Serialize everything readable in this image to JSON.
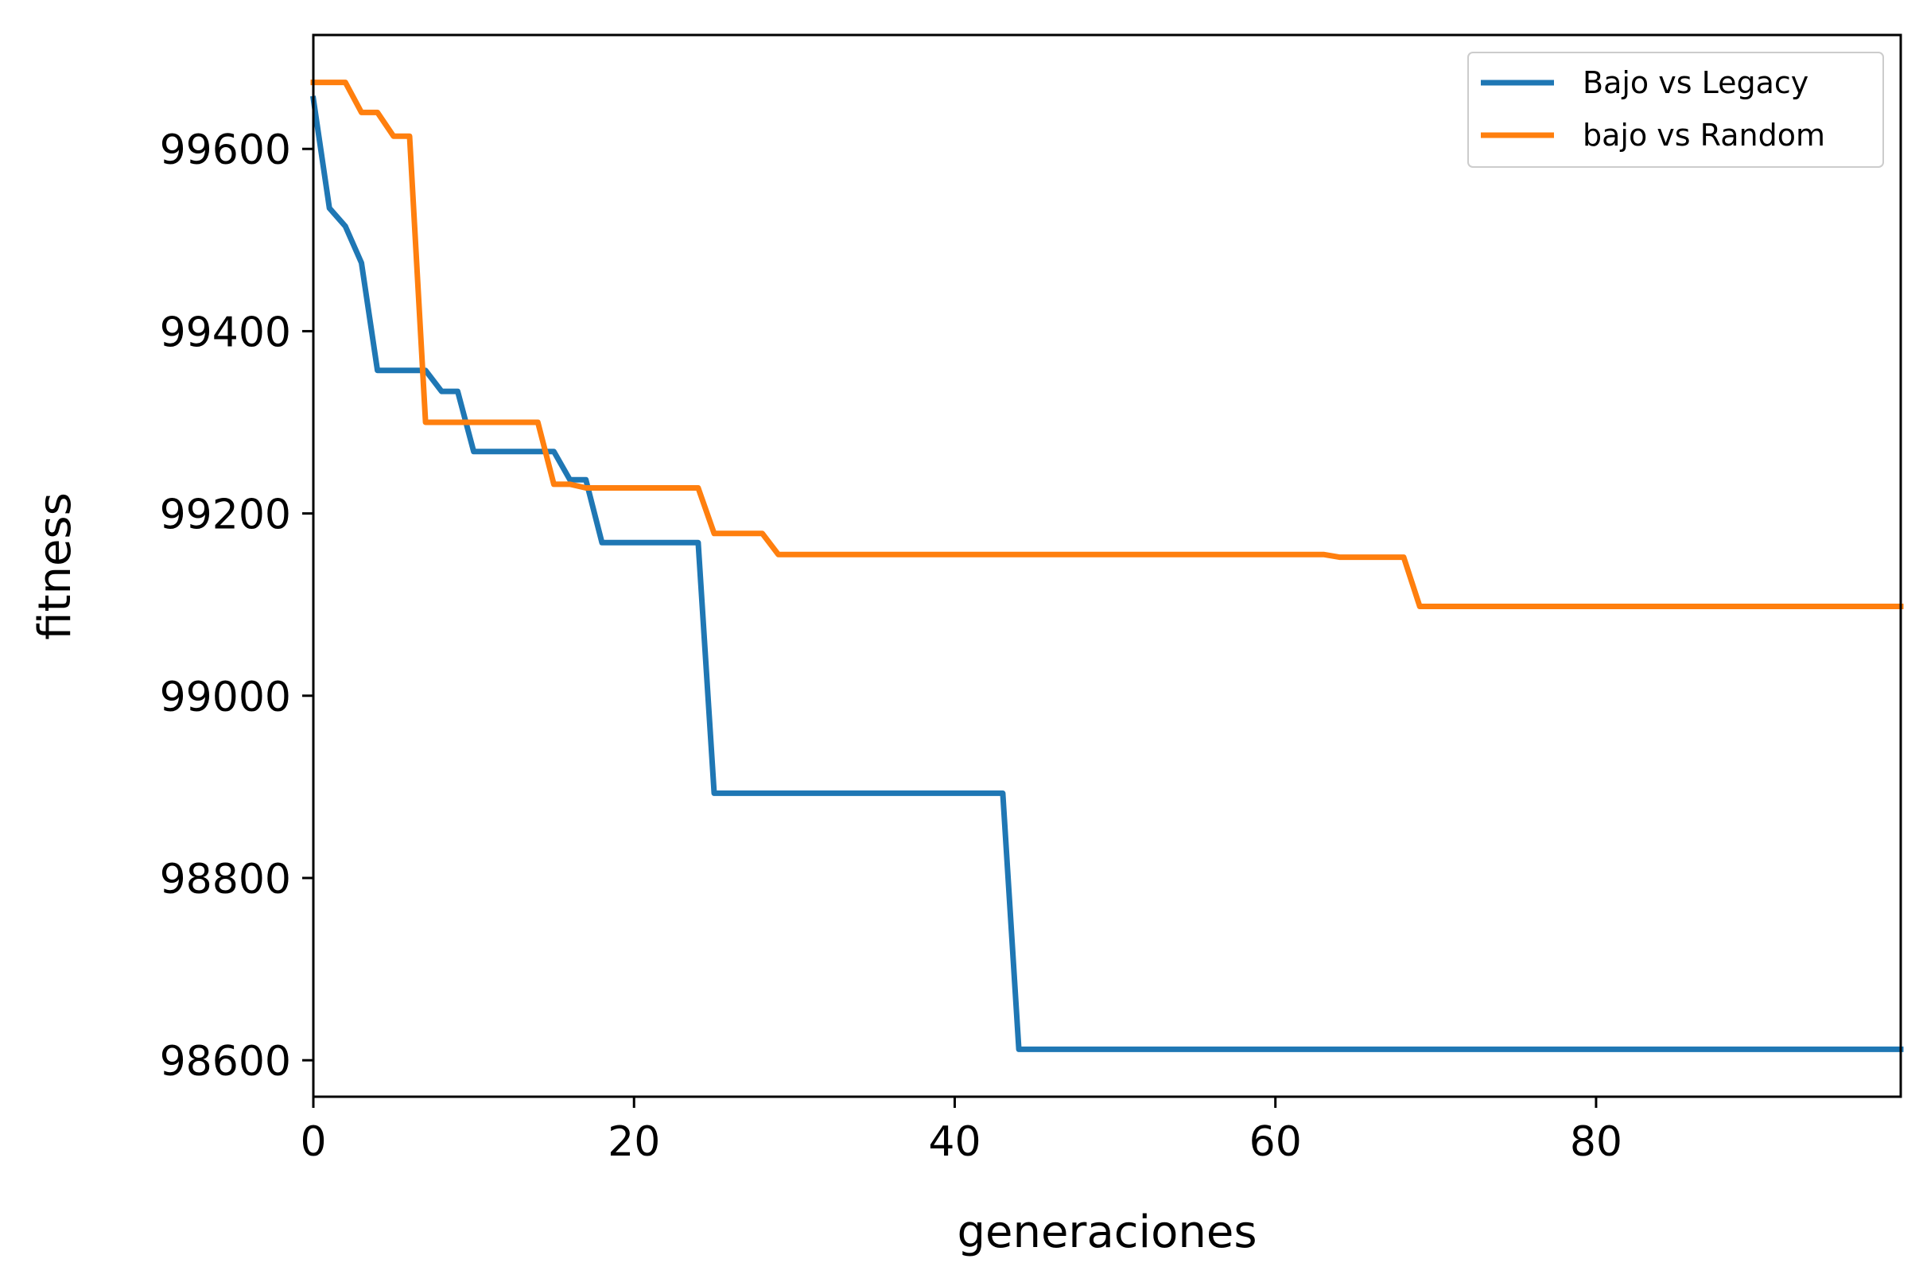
{
  "chart_data": {
    "type": "line",
    "xlabel": "generaciones",
    "ylabel": "fitness",
    "xlim": [
      0,
      99
    ],
    "ylim": [
      98560,
      99725
    ],
    "xticks": [
      0,
      20,
      40,
      60,
      80
    ],
    "yticks": [
      98600,
      98800,
      99000,
      99200,
      99400,
      99600
    ],
    "legend": "top-right",
    "grid": false,
    "series": [
      {
        "name": "Bajo vs Legacy",
        "color": "#1f77b4",
        "x": [
          0,
          1,
          2,
          3,
          4,
          5,
          6,
          7,
          8,
          9,
          10,
          11,
          12,
          13,
          14,
          15,
          16,
          17,
          18,
          19,
          20,
          21,
          22,
          23,
          24,
          25,
          43,
          44,
          99
        ],
        "y": [
          99655,
          99535,
          99515,
          99475,
          99357,
          99357,
          99357,
          99357,
          99334,
          99334,
          99268,
          99268,
          99268,
          99268,
          99268,
          99268,
          99237,
          99237,
          99168,
          99168,
          99168,
          99168,
          99168,
          99168,
          99168,
          98893,
          98893,
          98612,
          98612
        ]
      },
      {
        "name": "bajo vs Random",
        "color": "#ff7f0e",
        "x": [
          0,
          1,
          2,
          3,
          4,
          5,
          6,
          7,
          8,
          14,
          15,
          16,
          17,
          24,
          25,
          28,
          29,
          63,
          64,
          68,
          69,
          99
        ],
        "y": [
          99673,
          99673,
          99673,
          99640,
          99640,
          99614,
          99614,
          99300,
          99300,
          99300,
          99232,
          99232,
          99228,
          99228,
          99178,
          99178,
          99155,
          99155,
          99152,
          99152,
          99098,
          99098
        ]
      }
    ]
  }
}
